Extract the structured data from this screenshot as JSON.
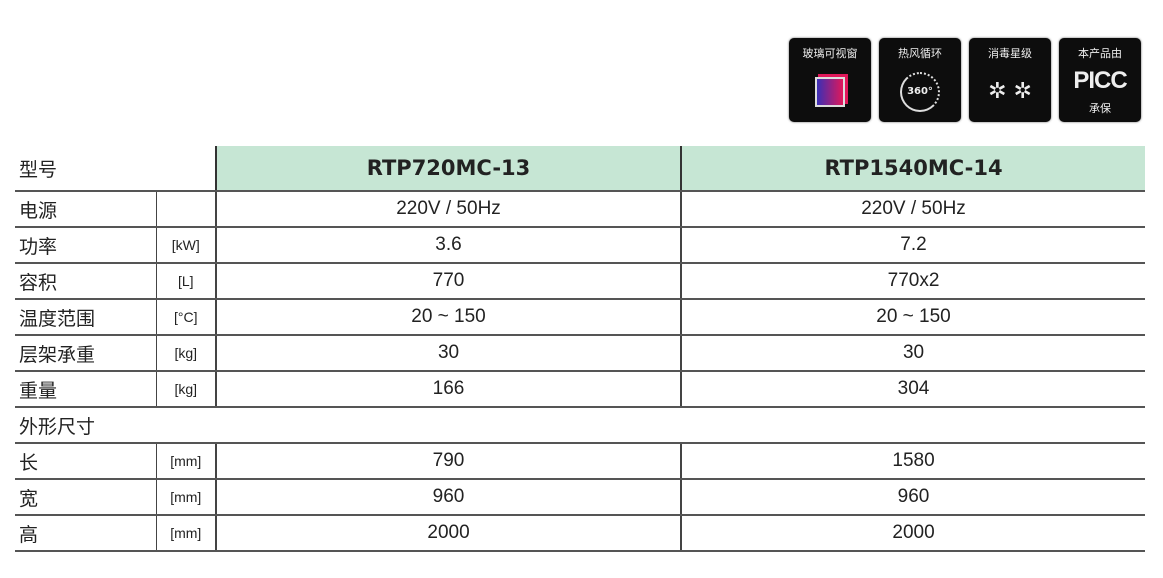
{
  "badges": [
    {
      "title": "玻璃可视窗",
      "icon": "glass-window-icon"
    },
    {
      "title": "热风循环",
      "icon": "rotation-360-icon",
      "icon_text": "360°"
    },
    {
      "title": "消毒星级",
      "icon": "disinfection-star-icon",
      "icon_text": "✲ ✲"
    },
    {
      "title": "本产品由",
      "icon": "picc-logo",
      "logo_text": "PICC",
      "subtitle": "承保"
    }
  ],
  "table": {
    "header": {
      "label": "型号",
      "models": [
        "RTP720MC-13",
        "RTP1540MC-14"
      ]
    },
    "rows": [
      {
        "label": "电源",
        "unit": "",
        "values": [
          "220V / 50Hz",
          "220V / 50Hz"
        ]
      },
      {
        "label": "功率",
        "unit": "[kW]",
        "values": [
          "3.6",
          "7.2"
        ]
      },
      {
        "label": "容积",
        "unit": "[L]",
        "values": [
          "770",
          "770x2"
        ]
      },
      {
        "label": "温度范围",
        "unit": "[°C]",
        "values": [
          "20 ~ 150",
          "20 ~ 150"
        ]
      },
      {
        "label": "层架承重",
        "unit": "[kg]",
        "values": [
          "30",
          "30"
        ]
      },
      {
        "label": "重量",
        "unit": "[kg]",
        "values": [
          "166",
          "304"
        ]
      }
    ],
    "group_label": "外形尺寸",
    "dim_rows": [
      {
        "label": "长",
        "unit": "[mm]",
        "values": [
          "790",
          "1580"
        ]
      },
      {
        "label": "宽",
        "unit": "[mm]",
        "values": [
          "960",
          "960"
        ]
      },
      {
        "label": "高",
        "unit": "[mm]",
        "values": [
          "2000",
          "2000"
        ]
      }
    ]
  },
  "colors": {
    "header_bg": "#c6e6d4",
    "badge_bg": "#0d0d0d"
  }
}
